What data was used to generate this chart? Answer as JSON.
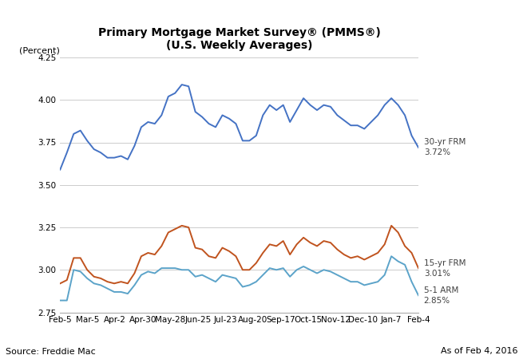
{
  "title_line1": "Primary Mortgage Market Survey® (PMMS®)",
  "title_line2": "(U.S. Weekly Averages)",
  "ylabel": "(Percent)",
  "source_text": "Source: Freddie Mac",
  "date_text": "As of Feb 4, 2016",
  "xtick_labels": [
    "Feb-5",
    "Mar-5",
    "Apr-2",
    "Apr-30",
    "May-28",
    "Jun-25",
    "Jul-23",
    "Aug-20",
    "Sep-17",
    "Oct-15",
    "Nov-12",
    "Dec-10",
    "Jan-7",
    "Feb-4"
  ],
  "ylim": [
    2.75,
    4.25
  ],
  "yticks": [
    2.75,
    3.0,
    3.25,
    3.5,
    3.75,
    4.0,
    4.25
  ],
  "frm30_color": "#4472C4",
  "frm15_color": "#C0531E",
  "arm51_color": "#5BA3C9",
  "label_color": "#404040",
  "frm30_label_line1": "30-yr FRM",
  "frm30_label_line2": "3.72%",
  "frm15_label_line1": "15-yr FRM",
  "frm15_label_line2": "3.01%",
  "arm51_label_line1": "5-1 ARM",
  "arm51_label_line2": "2.85%",
  "frm30": [
    3.59,
    3.69,
    3.8,
    3.82,
    3.76,
    3.71,
    3.69,
    3.66,
    3.66,
    3.67,
    3.65,
    3.73,
    3.84,
    3.87,
    3.86,
    3.91,
    4.02,
    4.04,
    4.09,
    4.08,
    3.93,
    3.9,
    3.86,
    3.84,
    3.91,
    3.89,
    3.86,
    3.76,
    3.76,
    3.79,
    3.91,
    3.97,
    3.94,
    3.97,
    3.87,
    3.94,
    4.01,
    3.97,
    3.94,
    3.97,
    3.96,
    3.91,
    3.88,
    3.85,
    3.85,
    3.83,
    3.87,
    3.91,
    3.97,
    4.01,
    3.97,
    3.91,
    3.79,
    3.72
  ],
  "frm15": [
    2.92,
    2.94,
    3.07,
    3.07,
    3.0,
    2.96,
    2.95,
    2.93,
    2.92,
    2.93,
    2.92,
    2.98,
    3.08,
    3.1,
    3.09,
    3.14,
    3.22,
    3.24,
    3.26,
    3.25,
    3.13,
    3.12,
    3.08,
    3.07,
    3.13,
    3.11,
    3.08,
    3.0,
    3.0,
    3.04,
    3.1,
    3.15,
    3.14,
    3.17,
    3.09,
    3.15,
    3.19,
    3.16,
    3.14,
    3.17,
    3.16,
    3.12,
    3.09,
    3.07,
    3.08,
    3.06,
    3.08,
    3.1,
    3.15,
    3.26,
    3.22,
    3.14,
    3.1,
    3.01
  ],
  "arm51": [
    2.82,
    2.82,
    3.0,
    2.99,
    2.95,
    2.92,
    2.91,
    2.89,
    2.87,
    2.87,
    2.86,
    2.91,
    2.97,
    2.99,
    2.98,
    3.01,
    3.01,
    3.01,
    3.0,
    3.0,
    2.96,
    2.97,
    2.95,
    2.93,
    2.97,
    2.96,
    2.95,
    2.9,
    2.91,
    2.93,
    2.97,
    3.01,
    3.0,
    3.01,
    2.96,
    3.0,
    3.02,
    3.0,
    2.98,
    3.0,
    2.99,
    2.97,
    2.95,
    2.93,
    2.93,
    2.91,
    2.92,
    2.93,
    2.97,
    3.08,
    3.05,
    3.03,
    2.93,
    2.85
  ]
}
